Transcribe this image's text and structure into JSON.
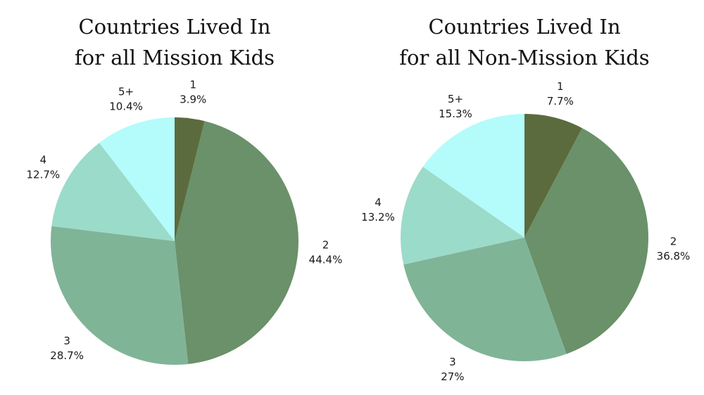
{
  "chart_data": [
    {
      "type": "pie",
      "title_lines": [
        "Countries Lived In",
        "for all Mission Kids"
      ],
      "slices": [
        {
          "label": "1",
          "value": 3.9,
          "display": "3.9%",
          "color": "#5c6b3e"
        },
        {
          "label": "2",
          "value": 44.4,
          "display": "44.4%",
          "color": "#6a9169"
        },
        {
          "label": "3",
          "value": 28.7,
          "display": "28.7%",
          "color": "#80b497"
        },
        {
          "label": "4",
          "value": 12.7,
          "display": "12.7%",
          "color": "#9bdbc9"
        },
        {
          "label": "5+",
          "value": 10.4,
          "display": "10.4%",
          "color": "#b4fbfb"
        }
      ]
    },
    {
      "type": "pie",
      "title_lines": [
        "Countries Lived In",
        "for all Non-Mission Kids"
      ],
      "slices": [
        {
          "label": "1",
          "value": 7.7,
          "display": "7.7%",
          "color": "#5c6b3e"
        },
        {
          "label": "2",
          "value": 36.8,
          "display": "36.8%",
          "color": "#6a9169"
        },
        {
          "label": "3",
          "value": 27,
          "display": "27%",
          "color": "#80b497"
        },
        {
          "label": "4",
          "value": 13.2,
          "display": "13.2%",
          "color": "#9bdbc9"
        },
        {
          "label": "5+",
          "value": 15.3,
          "display": "15.3%",
          "color": "#b4fbfb"
        }
      ]
    }
  ]
}
